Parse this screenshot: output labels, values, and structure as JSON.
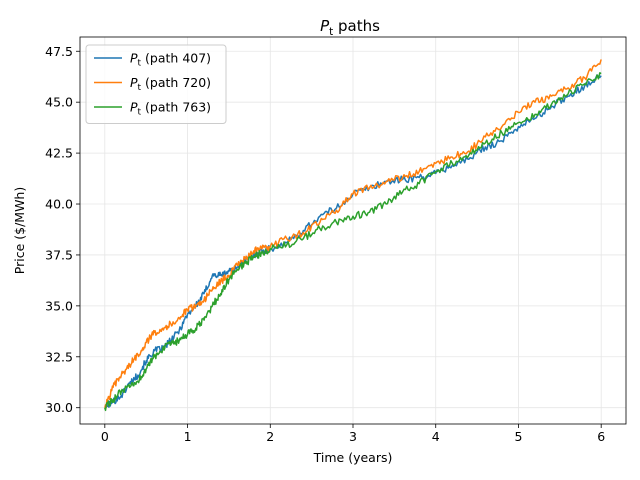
{
  "chart_data": {
    "type": "line",
    "title_main": "P",
    "title_sub": "t",
    "title_rest": " paths",
    "xlabel": "Time (years)",
    "ylabel": "Price ($/MWh)",
    "xlim": [
      -0.3,
      6.3
    ],
    "ylim": [
      29.2,
      48.2
    ],
    "xticks": [
      0,
      1,
      2,
      3,
      4,
      5,
      6
    ],
    "xtick_labels": [
      "0",
      "1",
      "2",
      "3",
      "4",
      "5",
      "6"
    ],
    "yticks": [
      30.0,
      32.5,
      35.0,
      37.5,
      40.0,
      42.5,
      45.0,
      47.5
    ],
    "ytick_labels": [
      "30.0",
      "32.5",
      "35.0",
      "37.5",
      "40.0",
      "42.5",
      "45.0",
      "47.5"
    ],
    "grid": true,
    "legend_position": "top-left",
    "series": [
      {
        "name_main": "P",
        "name_sub": "t",
        "name_rest": " (path 407)",
        "color": "#1f77b4",
        "points": [
          [
            0,
            30.0
          ],
          [
            0.1,
            30.3
          ],
          [
            0.2,
            30.6
          ],
          [
            0.3,
            31.2
          ],
          [
            0.4,
            31.6
          ],
          [
            0.5,
            32.3
          ],
          [
            0.6,
            32.8
          ],
          [
            0.7,
            32.9
          ],
          [
            0.8,
            33.3
          ],
          [
            0.9,
            33.8
          ],
          [
            1.0,
            34.6
          ],
          [
            1.1,
            35.0
          ],
          [
            1.2,
            35.6
          ],
          [
            1.3,
            36.5
          ],
          [
            1.4,
            36.5
          ],
          [
            1.5,
            36.7
          ],
          [
            1.6,
            36.9
          ],
          [
            1.7,
            37.2
          ],
          [
            1.8,
            37.5
          ],
          [
            1.9,
            37.7
          ],
          [
            2.0,
            37.8
          ],
          [
            2.2,
            38.1
          ],
          [
            2.4,
            38.7
          ],
          [
            2.6,
            39.4
          ],
          [
            2.8,
            39.8
          ],
          [
            3.0,
            40.5
          ],
          [
            3.2,
            40.8
          ],
          [
            3.4,
            41.1
          ],
          [
            3.6,
            41.2
          ],
          [
            3.8,
            41.3
          ],
          [
            4.0,
            41.5
          ],
          [
            4.2,
            41.9
          ],
          [
            4.4,
            42.2
          ],
          [
            4.6,
            42.8
          ],
          [
            4.8,
            43.1
          ],
          [
            5.0,
            43.8
          ],
          [
            5.2,
            44.2
          ],
          [
            5.4,
            44.8
          ],
          [
            5.6,
            45.3
          ],
          [
            5.8,
            45.8
          ],
          [
            6.0,
            46.3
          ]
        ]
      },
      {
        "name_main": "P",
        "name_sub": "t",
        "name_rest": " (path 720)",
        "color": "#ff7f0e",
        "points": [
          [
            0,
            30.0
          ],
          [
            0.1,
            31.0
          ],
          [
            0.2,
            31.6
          ],
          [
            0.3,
            32.1
          ],
          [
            0.4,
            32.6
          ],
          [
            0.5,
            33.2
          ],
          [
            0.6,
            33.7
          ],
          [
            0.7,
            33.9
          ],
          [
            0.8,
            34.1
          ],
          [
            0.9,
            34.4
          ],
          [
            1.0,
            34.8
          ],
          [
            1.1,
            35.0
          ],
          [
            1.2,
            35.3
          ],
          [
            1.3,
            35.8
          ],
          [
            1.4,
            36.2
          ],
          [
            1.5,
            36.5
          ],
          [
            1.6,
            37.0
          ],
          [
            1.7,
            37.3
          ],
          [
            1.8,
            37.7
          ],
          [
            1.9,
            37.8
          ],
          [
            2.0,
            37.9
          ],
          [
            2.2,
            38.3
          ],
          [
            2.4,
            38.6
          ],
          [
            2.6,
            39.1
          ],
          [
            2.8,
            39.7
          ],
          [
            3.0,
            40.5
          ],
          [
            3.2,
            40.8
          ],
          [
            3.4,
            41.1
          ],
          [
            3.6,
            41.3
          ],
          [
            3.8,
            41.6
          ],
          [
            4.0,
            42.0
          ],
          [
            4.2,
            42.3
          ],
          [
            4.4,
            42.6
          ],
          [
            4.6,
            43.3
          ],
          [
            4.8,
            43.8
          ],
          [
            5.0,
            44.5
          ],
          [
            5.2,
            45.0
          ],
          [
            5.4,
            45.3
          ],
          [
            5.6,
            45.7
          ],
          [
            5.8,
            46.2
          ],
          [
            6.0,
            47.1
          ]
        ]
      },
      {
        "name_main": "P",
        "name_sub": "t",
        "name_rest": " (path 763)",
        "color": "#2ca02c",
        "points": [
          [
            0,
            30.0
          ],
          [
            0.1,
            30.4
          ],
          [
            0.2,
            30.8
          ],
          [
            0.3,
            31.0
          ],
          [
            0.4,
            31.3
          ],
          [
            0.5,
            31.9
          ],
          [
            0.6,
            32.5
          ],
          [
            0.7,
            32.9
          ],
          [
            0.8,
            33.1
          ],
          [
            0.9,
            33.3
          ],
          [
            1.0,
            33.6
          ],
          [
            1.1,
            33.9
          ],
          [
            1.2,
            34.3
          ],
          [
            1.3,
            35.0
          ],
          [
            1.4,
            35.6
          ],
          [
            1.5,
            36.3
          ],
          [
            1.6,
            36.8
          ],
          [
            1.7,
            37.1
          ],
          [
            1.8,
            37.4
          ],
          [
            1.9,
            37.6
          ],
          [
            2.0,
            37.8
          ],
          [
            2.2,
            38.0
          ],
          [
            2.4,
            38.3
          ],
          [
            2.6,
            38.8
          ],
          [
            2.8,
            39.1
          ],
          [
            3.0,
            39.4
          ],
          [
            3.2,
            39.6
          ],
          [
            3.4,
            40.0
          ],
          [
            3.6,
            40.6
          ],
          [
            3.8,
            41.0
          ],
          [
            4.0,
            41.6
          ],
          [
            4.2,
            42.0
          ],
          [
            4.4,
            42.4
          ],
          [
            4.6,
            43.0
          ],
          [
            4.8,
            43.5
          ],
          [
            5.0,
            44.0
          ],
          [
            5.2,
            44.4
          ],
          [
            5.4,
            44.9
          ],
          [
            5.6,
            45.4
          ],
          [
            5.8,
            45.9
          ],
          [
            6.0,
            46.4
          ]
        ]
      }
    ]
  }
}
